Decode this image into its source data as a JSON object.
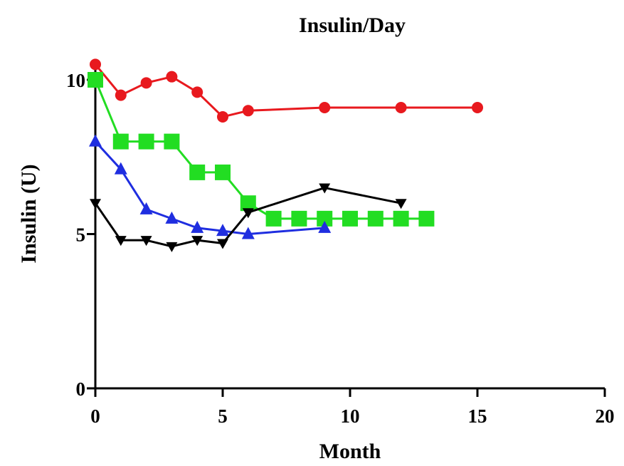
{
  "chart_data": {
    "type": "line",
    "title": "Insulin/Day",
    "xlabel": "Month",
    "ylabel": "Insulin (U)",
    "xlim": [
      0,
      20
    ],
    "ylim": [
      0,
      10
    ],
    "x_ticks": [
      0,
      5,
      10,
      15,
      20
    ],
    "y_ticks": [
      0,
      5,
      10
    ],
    "x_tick_labels": [
      "0",
      "5",
      "10",
      "15",
      "20"
    ],
    "y_tick_labels": [
      "0",
      "5",
      "10"
    ],
    "grid": false,
    "legend": false,
    "series": [
      {
        "color": "#e8191e",
        "marker": "circle",
        "x": [
          0,
          1,
          2,
          3,
          4,
          5,
          6,
          9,
          12,
          15
        ],
        "y": [
          10.5,
          9.5,
          9.9,
          10.1,
          9.6,
          8.8,
          9.0,
          9.1,
          9.1,
          9.1
        ]
      },
      {
        "color": "#22dd22",
        "marker": "square",
        "x": [
          0,
          1,
          2,
          3,
          4,
          5,
          6,
          7,
          8,
          9,
          10,
          11,
          12,
          13
        ],
        "y": [
          10.0,
          8.0,
          8.0,
          8.0,
          7.0,
          7.0,
          6.0,
          5.5,
          5.5,
          5.5,
          5.5,
          5.5,
          5.5,
          5.5
        ]
      },
      {
        "color": "#1f2ee0",
        "marker": "triangle-up",
        "x": [
          0,
          1,
          2,
          3,
          4,
          5,
          6,
          9
        ],
        "y": [
          8.0,
          7.1,
          5.8,
          5.5,
          5.2,
          5.1,
          5.0,
          5.2
        ]
      },
      {
        "color": "#000000",
        "marker": "triangle-down",
        "x": [
          0,
          1,
          2,
          3,
          4,
          5,
          6,
          9,
          12
        ],
        "y": [
          6.0,
          4.8,
          4.8,
          4.6,
          4.8,
          4.7,
          5.7,
          6.5,
          6.0
        ]
      }
    ]
  }
}
